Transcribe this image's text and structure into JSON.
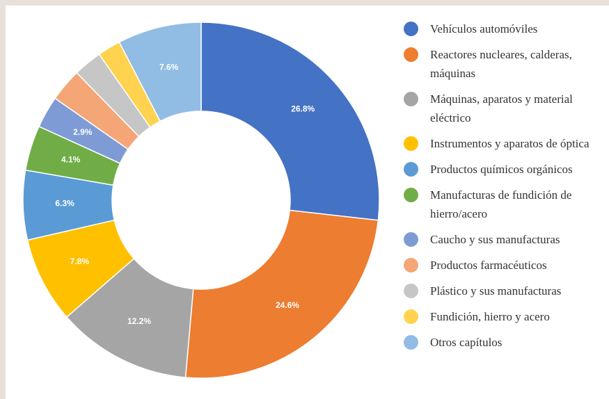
{
  "chart_data": {
    "type": "donut",
    "categories": [
      "Vehículos automóviles",
      "Reactores nucleares, calderas, máquinas",
      "Máquinas, aparatos y material eléctrico",
      "Instrumentos y aparatos de óptica",
      "Productos químicos orgánicos",
      "Manufacturas de fundición de hierro/acero",
      "Caucho y sus manufacturas",
      "Productos farmacéuticos",
      "Plástico y sus manufacturas",
      "Fundición, hierro y acero",
      "Otros capítulos"
    ],
    "values": [
      26.8,
      24.6,
      12.2,
      7.8,
      6.3,
      4.1,
      2.9,
      3.0,
      2.6,
      2.1,
      7.6
    ],
    "value_labels": [
      "26.8%",
      "24.6%",
      "12.2%",
      "7.8%",
      "6.3%",
      "4.1%",
      "2.9%",
      null,
      null,
      null,
      "7.6%"
    ],
    "colors": [
      "#4472c4",
      "#ed7d31",
      "#a5a5a5",
      "#ffc000",
      "#5b9bd5",
      "#70ad47",
      "#7f9bd6",
      "#f4a676",
      "#c6c6c6",
      "#ffd34f",
      "#91bce4"
    ],
    "legend": "right"
  }
}
